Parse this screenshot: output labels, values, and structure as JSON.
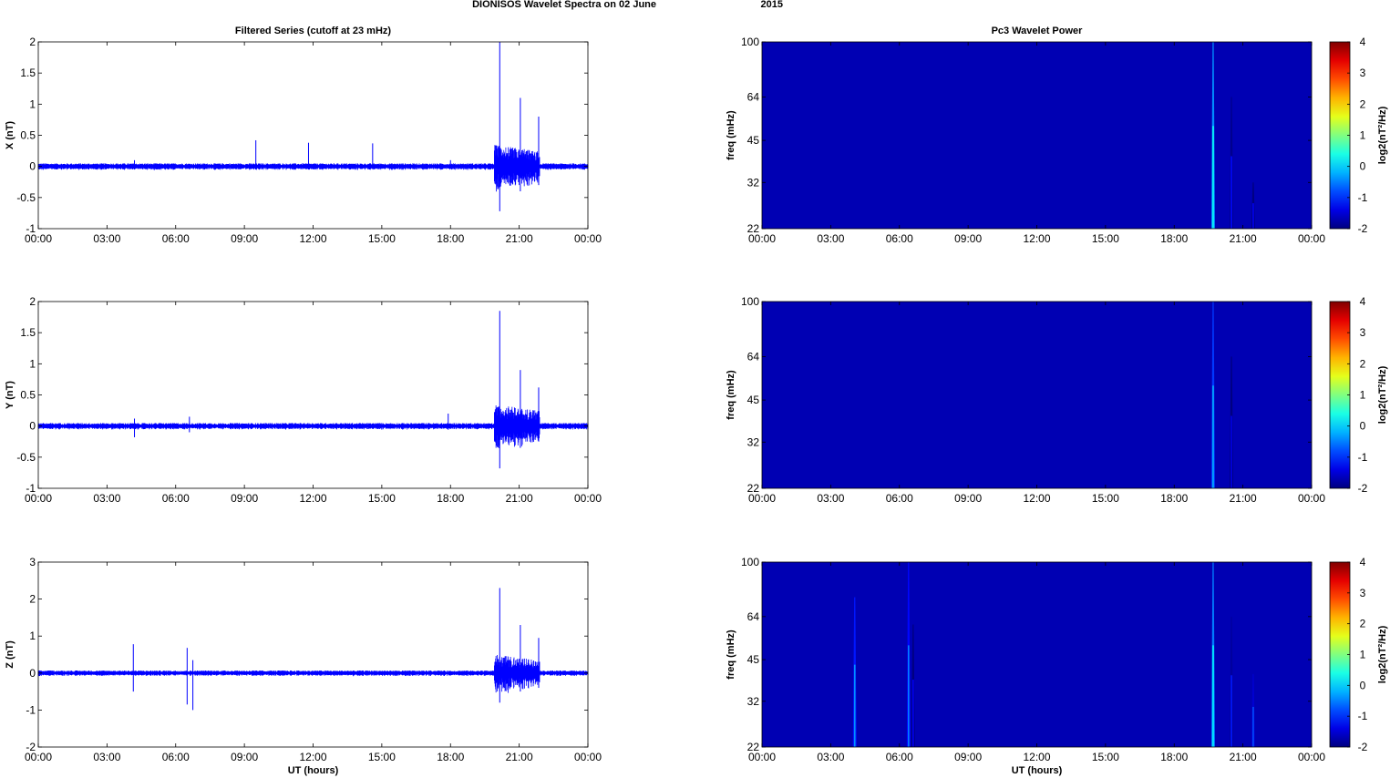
{
  "figure": {
    "title_left": "DIONISOS Wavelet Spectra on 02 June",
    "title_right": "2015"
  },
  "chart_data": [
    {
      "type": "line",
      "id": "x",
      "title": "Filtered Series (cutoff at 23 mHz)",
      "xlabel": "",
      "ylabel": "X (nT)",
      "xlim": [
        0,
        24
      ],
      "ylim": [
        -1,
        2
      ],
      "yticks": [
        "-1",
        "-0.5",
        "0",
        "0.5",
        "1",
        "1.5",
        "2"
      ],
      "ytick_values": [
        -1,
        -0.5,
        0,
        0.5,
        1,
        1.5,
        2
      ],
      "xticks": [
        "00:00",
        "03:00",
        "06:00",
        "09:00",
        "12:00",
        "15:00",
        "18:00",
        "21:00",
        "00:00"
      ],
      "xtick_values": [
        0,
        3,
        6,
        9,
        12,
        15,
        18,
        21,
        24
      ],
      "color": "#0000ff",
      "noise": 0.035,
      "storm": {
        "start": 19.9,
        "end": 21.9,
        "base": 0.35
      },
      "spikes": [
        {
          "t": 4.2,
          "hi": 0.1,
          "lo": -0.05
        },
        {
          "t": 9.5,
          "hi": 0.42,
          "lo": -0.05
        },
        {
          "t": 11.8,
          "hi": 0.38,
          "lo": -0.05
        },
        {
          "t": 14.6,
          "hi": 0.37,
          "lo": -0.04
        },
        {
          "t": 18.0,
          "hi": 0.1,
          "lo": -0.04
        },
        {
          "t": 20.15,
          "hi": 2.0,
          "lo": -0.72
        },
        {
          "t": 21.05,
          "hi": 1.1,
          "lo": -0.4
        },
        {
          "t": 21.85,
          "hi": 0.8,
          "lo": -0.3
        }
      ]
    },
    {
      "type": "line",
      "id": "y",
      "title": "",
      "xlabel": "",
      "ylabel": "Y (nT)",
      "xlim": [
        0,
        24
      ],
      "ylim": [
        -1,
        2
      ],
      "yticks": [
        "-1",
        "-0.5",
        "0",
        "0.5",
        "1",
        "1.5",
        "2"
      ],
      "ytick_values": [
        -1,
        -0.5,
        0,
        0.5,
        1,
        1.5,
        2
      ],
      "xticks": [
        "00:00",
        "03:00",
        "06:00",
        "09:00",
        "12:00",
        "15:00",
        "18:00",
        "21:00",
        "00:00"
      ],
      "xtick_values": [
        0,
        3,
        6,
        9,
        12,
        15,
        18,
        21,
        24
      ],
      "color": "#0000ff",
      "noise": 0.035,
      "storm": {
        "start": 19.9,
        "end": 21.9,
        "base": 0.35
      },
      "spikes": [
        {
          "t": 4.2,
          "hi": 0.12,
          "lo": -0.18
        },
        {
          "t": 6.6,
          "hi": 0.15,
          "lo": -0.1
        },
        {
          "t": 17.9,
          "hi": 0.2,
          "lo": -0.06
        },
        {
          "t": 20.15,
          "hi": 1.85,
          "lo": -0.68
        },
        {
          "t": 21.05,
          "hi": 0.9,
          "lo": -0.35
        },
        {
          "t": 21.85,
          "hi": 0.62,
          "lo": -0.25
        }
      ]
    },
    {
      "type": "line",
      "id": "z",
      "title": "",
      "xlabel": "UT (hours)",
      "ylabel": "Z (nT)",
      "xlim": [
        0,
        24
      ],
      "ylim": [
        -2,
        3
      ],
      "yticks": [
        "-2",
        "-1",
        "0",
        "1",
        "2",
        "3"
      ],
      "ytick_values": [
        -2,
        -1,
        0,
        1,
        2,
        3
      ],
      "xticks": [
        "00:00",
        "03:00",
        "06:00",
        "09:00",
        "12:00",
        "15:00",
        "18:00",
        "21:00",
        "00:00"
      ],
      "xtick_values": [
        0,
        3,
        6,
        9,
        12,
        15,
        18,
        21,
        24
      ],
      "color": "#0000ff",
      "noise": 0.05,
      "storm": {
        "start": 19.9,
        "end": 21.9,
        "base": 0.5
      },
      "spikes": [
        {
          "t": 4.15,
          "hi": 0.78,
          "lo": -0.5
        },
        {
          "t": 6.5,
          "hi": 0.68,
          "lo": -0.85
        },
        {
          "t": 6.75,
          "hi": 0.35,
          "lo": -1.0
        },
        {
          "t": 20.15,
          "hi": 2.3,
          "lo": -0.8
        },
        {
          "t": 21.05,
          "hi": 1.3,
          "lo": -0.5
        },
        {
          "t": 21.85,
          "hi": 0.95,
          "lo": -0.4
        }
      ]
    },
    {
      "type": "heatmap",
      "id": "px",
      "title": "Pc3 Wavelet Power",
      "xlabel": "",
      "ylabel": "freq (mHz)",
      "colorbar_label": "log2(nT²/Hz)",
      "xlim": [
        0,
        24
      ],
      "ylim": [
        22,
        100
      ],
      "yscale": "log",
      "yticks": [
        "22",
        "32",
        "45",
        "64",
        "100"
      ],
      "ytick_values": [
        22,
        32,
        45,
        64,
        100
      ],
      "xticks": [
        "00:00",
        "03:00",
        "06:00",
        "09:00",
        "12:00",
        "15:00",
        "18:00",
        "21:00",
        "00:00"
      ],
      "xtick_values": [
        0,
        3,
        6,
        9,
        12,
        15,
        18,
        21,
        24
      ],
      "clim": [
        -2,
        4
      ],
      "cticks": [
        "-2",
        "-1",
        "0",
        "1",
        "2",
        "3",
        "4"
      ],
      "ctick_values": [
        -2,
        -1,
        0,
        1,
        2,
        3,
        4
      ],
      "background": -1.7,
      "events": [
        {
          "t": 19.7,
          "fmax": 100,
          "level": 0.3
        },
        {
          "t": 20.5,
          "fmax": 64,
          "level": -1.2
        },
        {
          "t": 21.45,
          "fmax": 32,
          "level": -1.3
        }
      ]
    },
    {
      "type": "heatmap",
      "id": "py",
      "title": "",
      "xlabel": "",
      "ylabel": "freq (mHz)",
      "colorbar_label": "log2(nT²/Hz)",
      "xlim": [
        0,
        24
      ],
      "ylim": [
        22,
        100
      ],
      "yscale": "log",
      "yticks": [
        "22",
        "32",
        "45",
        "64",
        "100"
      ],
      "ytick_values": [
        22,
        32,
        45,
        64,
        100
      ],
      "xticks": [
        "00:00",
        "03:00",
        "06:00",
        "09:00",
        "12:00",
        "15:00",
        "18:00",
        "21:00",
        "00:00"
      ],
      "xtick_values": [
        0,
        3,
        6,
        9,
        12,
        15,
        18,
        21,
        24
      ],
      "clim": [
        -2,
        4
      ],
      "cticks": [
        "-2",
        "-1",
        "0",
        "1",
        "2",
        "3",
        "4"
      ],
      "ctick_values": [
        -2,
        -1,
        0,
        1,
        2,
        3,
        4
      ],
      "background": -1.7,
      "events": [
        {
          "t": 19.7,
          "fmax": 100,
          "level": -0.2
        },
        {
          "t": 20.5,
          "fmax": 64,
          "level": -1.4
        }
      ]
    },
    {
      "type": "heatmap",
      "id": "pz",
      "title": "",
      "xlabel": "UT (hours)",
      "ylabel": "freq (mHz)",
      "colorbar_label": "log2(nT²/Hz)",
      "xlim": [
        0,
        24
      ],
      "ylim": [
        22,
        100
      ],
      "yscale": "log",
      "yticks": [
        "22",
        "32",
        "45",
        "64",
        "100"
      ],
      "ytick_values": [
        22,
        32,
        45,
        64,
        100
      ],
      "xticks": [
        "00:00",
        "03:00",
        "06:00",
        "09:00",
        "12:00",
        "15:00",
        "18:00",
        "21:00",
        "00:00"
      ],
      "xtick_values": [
        0,
        3,
        6,
        9,
        12,
        15,
        18,
        21,
        24
      ],
      "clim": [
        -2,
        4
      ],
      "cticks": [
        "-2",
        "-1",
        "0",
        "1",
        "2",
        "3",
        "4"
      ],
      "ctick_values": [
        -2,
        -1,
        0,
        1,
        2,
        3,
        4
      ],
      "background": -1.7,
      "events": [
        {
          "t": 4.05,
          "fmax": 75,
          "level": -0.4
        },
        {
          "t": 6.4,
          "fmax": 100,
          "level": -0.5
        },
        {
          "t": 6.6,
          "fmax": 60,
          "level": -1.3
        },
        {
          "t": 19.7,
          "fmax": 100,
          "level": 0.2
        },
        {
          "t": 20.5,
          "fmax": 64,
          "level": -1.1
        },
        {
          "t": 21.45,
          "fmax": 40,
          "level": -0.8
        }
      ]
    }
  ]
}
